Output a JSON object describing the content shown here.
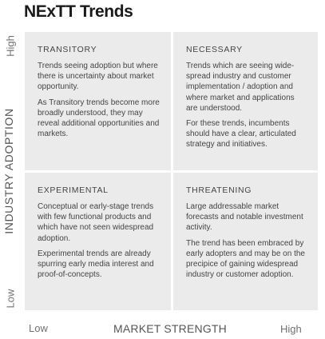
{
  "title": "NExTT Trends",
  "axes": {
    "y_high": "High",
    "y_label": "INDUSTRY ADOPTION",
    "y_low": "Low",
    "x_low": "Low",
    "x_label": "MARKET STRENGTH",
    "x_high": "High"
  },
  "quadrants": {
    "transitory": {
      "title": "TRANSITORY",
      "text1": "Trends seeing adoption but where there is uncertainty about market opportunity.",
      "text2": "As Transitory trends become more broadly understood, they may reveal additional opportunities and markets."
    },
    "necessary": {
      "title": "NECESSARY",
      "text1": "Trends which are seeing wide-spread industry and customer implementation / adoption and where market and applications are understood.",
      "text2": "For these trends, incumbents should have a clear, articulated strategy and initiatives."
    },
    "experimental": {
      "title": "EXPERIMENTAL",
      "text1": "Conceptual or early-stage trends with few functional products and which have not seen widespread adoption.",
      "text2": "Experimental trends are already spurring early media interest and proof-of-concepts."
    },
    "threatening": {
      "title": "THREATENING",
      "text1": "Large addressable market forecasts and notable investment activity.",
      "text2": "The trend has been embraced by early adopters and may be on the precipice of gaining widespread industry or customer adoption."
    }
  },
  "colors": {
    "quadrant_bg": "#ebebeb",
    "text": "#444444",
    "axis": "#707070"
  }
}
